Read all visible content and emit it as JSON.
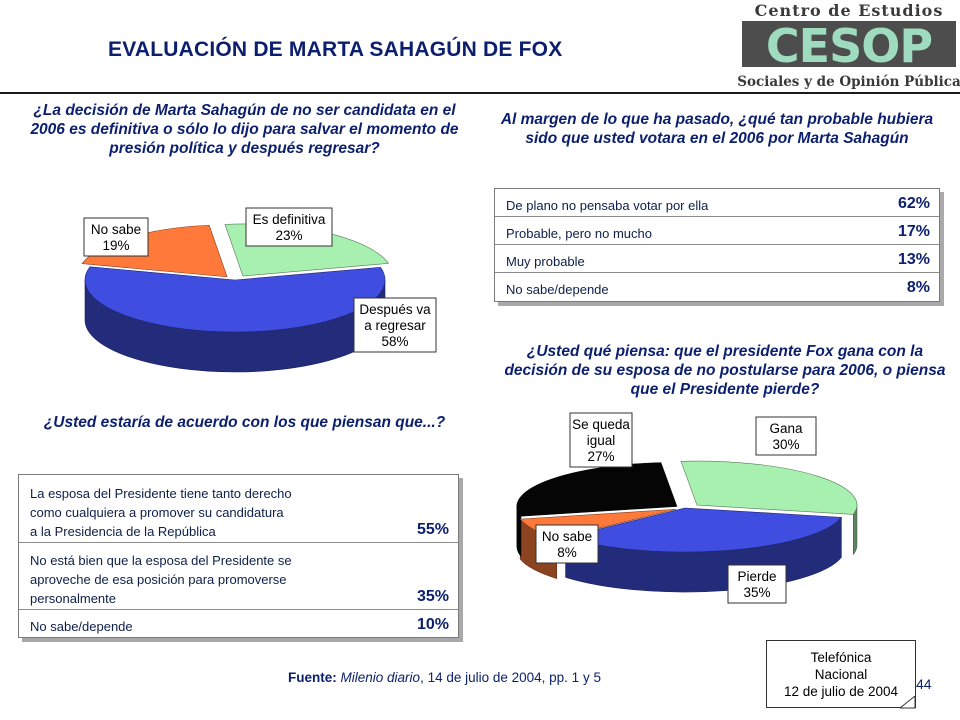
{
  "title": "EVALUACIÓN DE MARTA SAHAGÚN DE FOX",
  "logo": {
    "line1": "Centro de Estudios",
    "mark": "CESOP",
    "line2": "Sociales y de Opinión Pública"
  },
  "questions": {
    "q1": "¿La decisión de Marta Sahagún de no ser candidata en el 2006 es definitiva o sólo lo dijo para salvar el momento de presión política y después regresar?",
    "q2": "Al margen de lo que ha pasado, ¿qué tan probable hubiera sido que usted votara en el 2006 por Marta Sahagún",
    "q3": "¿Usted qué piensa: que el presidente Fox gana con la decisión de su esposa de no postularse para 2006, o piensa que el Presidente pierde?",
    "q4": "¿Usted estaría de acuerdo con los que piensan que...?"
  },
  "chart_data": [
    {
      "type": "pie",
      "question_ref": "q1",
      "slices": [
        {
          "label_lines": [
            "Es definitiva"
          ],
          "value": 23,
          "value_text": "23%",
          "color": "#a8f0b0"
        },
        {
          "label_lines": [
            "Después va",
            "a regresar"
          ],
          "value": 58,
          "value_text": "58%",
          "color": "#3f4ee0"
        },
        {
          "label_lines": [
            "No sabe"
          ],
          "value": 19,
          "value_text": "19%",
          "color": "#ff7a3a"
        }
      ]
    },
    {
      "type": "table",
      "question_ref": "q2",
      "rows": [
        {
          "label_lines": [
            "De plano no pensaba votar por ella"
          ],
          "value": 62,
          "value_text": "62%"
        },
        {
          "label_lines": [
            "Probable, pero no mucho"
          ],
          "value": 17,
          "value_text": "17%"
        },
        {
          "label_lines": [
            "Muy probable"
          ],
          "value": 13,
          "value_text": "13%"
        },
        {
          "label_lines": [
            "No sabe/depende"
          ],
          "value": 8,
          "value_text": "8%"
        }
      ]
    },
    {
      "type": "pie",
      "question_ref": "q3",
      "slices": [
        {
          "label_lines": [
            "Gana"
          ],
          "value": 30,
          "value_text": "30%",
          "color": "#a8f0b0"
        },
        {
          "label_lines": [
            "Pierde"
          ],
          "value": 35,
          "value_text": "35%",
          "color": "#3f4ee0"
        },
        {
          "label_lines": [
            "No sabe"
          ],
          "value": 8,
          "value_text": "8%",
          "color": "#ff7a3a"
        },
        {
          "label_lines": [
            "Se queda",
            "igual"
          ],
          "value": 27,
          "value_text": "27%",
          "color": "#050505"
        }
      ]
    },
    {
      "type": "table",
      "question_ref": "q4",
      "rows": [
        {
          "label_lines": [
            "La esposa del Presidente tiene tanto derecho",
            "como cualquiera a promover su candidatura",
            "a la Presidencia de la República"
          ],
          "value": 55,
          "value_text": "55%"
        },
        {
          "label_lines": [
            "No está bien que la esposa del Presidente se",
            "aproveche de esa posición para promoverse",
            "personalmente"
          ],
          "value": 35,
          "value_text": "35%"
        },
        {
          "label_lines": [
            "No sabe/depende"
          ],
          "value": 10,
          "value_text": "10%"
        }
      ]
    }
  ],
  "source": {
    "label": "Fuente:",
    "publication": "Milenio diario",
    "detail": ", 14 de julio de 2004, pp. 1 y 5"
  },
  "note": {
    "lines": [
      "Telefónica",
      "Nacional",
      "12 de julio de 2004"
    ]
  },
  "page_number": "44"
}
